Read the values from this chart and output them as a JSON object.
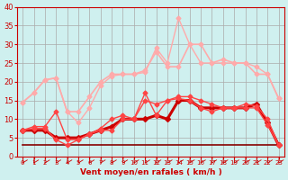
{
  "x": [
    0,
    1,
    2,
    3,
    4,
    5,
    6,
    7,
    8,
    9,
    10,
    11,
    12,
    13,
    14,
    15,
    16,
    17,
    18,
    19,
    20,
    21,
    22,
    23
  ],
  "line1": [
    7,
    7,
    7,
    5,
    5,
    5,
    6,
    7,
    8,
    10,
    10,
    10,
    11,
    10,
    15,
    15,
    13,
    13,
    13,
    13,
    13,
    14,
    9,
    3
  ],
  "line2": [
    7,
    7.5,
    7.5,
    4.5,
    3,
    4.5,
    6,
    7,
    7,
    10,
    10,
    17,
    11,
    15,
    15.5,
    15,
    13,
    12,
    13,
    13,
    13,
    13,
    8.5,
    3
  ],
  "line3": [
    7,
    8,
    8,
    12,
    4.5,
    4.5,
    6,
    7.5,
    10,
    11,
    10,
    15,
    14,
    15,
    16,
    16,
    15,
    14,
    13,
    13,
    14,
    13.5,
    10,
    3
  ],
  "line4_flat": [
    3,
    3,
    3,
    3,
    3,
    3,
    3,
    3,
    3,
    3,
    3,
    3,
    3,
    3,
    3,
    3,
    3,
    3,
    3,
    3,
    3,
    3,
    3,
    3
  ],
  "line5": [
    14.5,
    17,
    20.5,
    21,
    12,
    12,
    16,
    20,
    22,
    22,
    22,
    23,
    28,
    24,
    24,
    30,
    30,
    25,
    26,
    25,
    25,
    22,
    22,
    15.5
  ],
  "line6": [
    14.5,
    17,
    20.5,
    21,
    12,
    9,
    13,
    19,
    21.5,
    22,
    22,
    22.5,
    29,
    25,
    37,
    30,
    25,
    25,
    25,
    25,
    25,
    24,
    22,
    15.5
  ],
  "bg_color": "#cff0ef",
  "grid_color": "#aaaaaa",
  "line1_color": "#cc0000",
  "line2_color": "#ff4444",
  "line3_color": "#ff4444",
  "line4_color": "#880000",
  "line5_color": "#ffaaaa",
  "line6_color": "#ffaaaa",
  "xlabel": "Vent moyen/en rafales ( km/h )",
  "xlabel_color": "#cc0000",
  "tick_color": "#cc0000",
  "ylim": [
    0,
    40
  ],
  "yticks": [
    0,
    5,
    10,
    15,
    20,
    25,
    30,
    35,
    40
  ]
}
